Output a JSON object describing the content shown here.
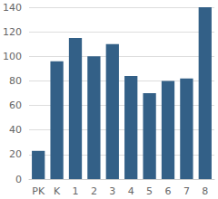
{
  "chart_data": {
    "type": "bar",
    "categories": [
      "PK",
      "K",
      "1",
      "2",
      "3",
      "4",
      "5",
      "6",
      "7",
      "8"
    ],
    "values": [
      23,
      96,
      115,
      100,
      110,
      84,
      70,
      80,
      82,
      140
    ],
    "color": "#336087",
    "ylim": [
      0,
      140
    ],
    "yticks": [
      0,
      20,
      40,
      60,
      80,
      100,
      120,
      140
    ],
    "grid": true
  }
}
